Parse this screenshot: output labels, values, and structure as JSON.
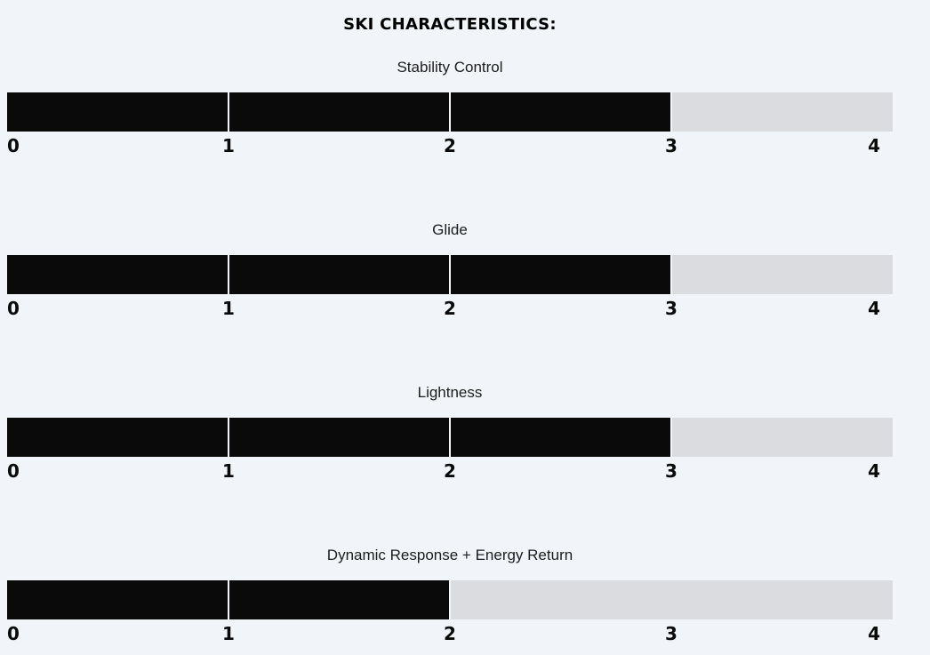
{
  "page": {
    "title": "SKI CHARACTERISTICS:"
  },
  "chart_data": {
    "type": "bar",
    "orientation": "horizontal",
    "title": "SKI CHARACTERISTICS:",
    "axis_range": [
      0,
      4
    ],
    "ticks": [
      0,
      1,
      2,
      3,
      4
    ],
    "grid": false,
    "legend": false,
    "series": [
      {
        "label": "Stability Control",
        "value": 3
      },
      {
        "label": "Glide",
        "value": 3
      },
      {
        "label": "Lightness",
        "value": 3
      },
      {
        "label": "Dynamic Response + Energy Return",
        "value": 2
      }
    ],
    "colors": {
      "fill": "#0a0a0a",
      "track": "#dadcdf",
      "divider": "#f1f5f9",
      "background": "#f1f5f9",
      "title_text": "#000000",
      "label_text": "#1c1c1c",
      "tick_text": "#0a0a0a"
    }
  }
}
